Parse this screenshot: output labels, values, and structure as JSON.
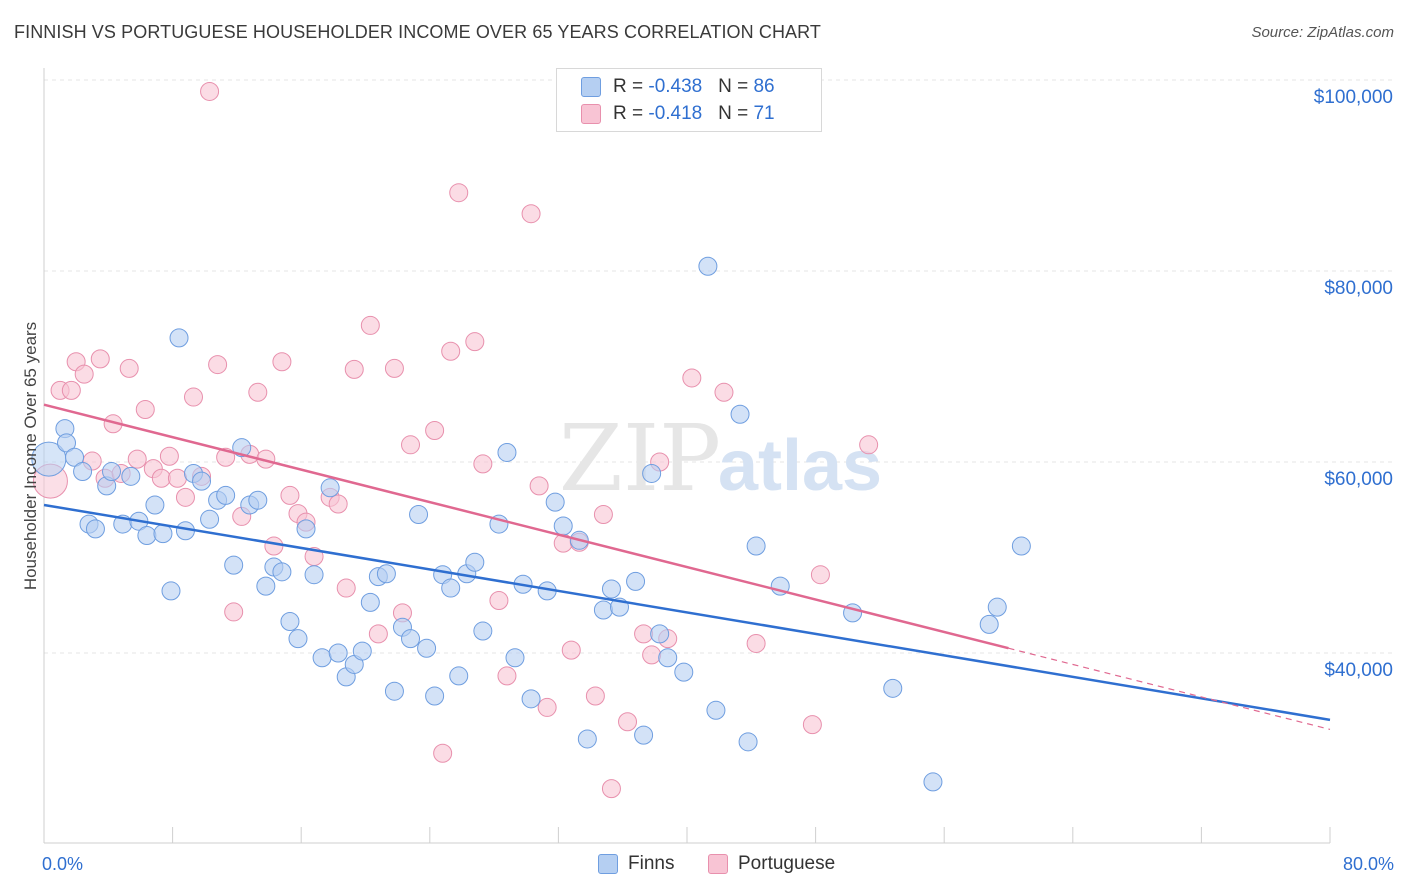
{
  "title": "FINNISH VS PORTUGUESE HOUSEHOLDER INCOME OVER 65 YEARS CORRELATION CHART",
  "source": "Source: ZipAtlas.com",
  "watermark": {
    "zip": "ZIP",
    "atlas": "atlas"
  },
  "legend": {
    "finns": {
      "r_label": "R = ",
      "r_value": "-0.438",
      "n_label": "N = ",
      "n_value": "86"
    },
    "portuguese": {
      "r_label": "R = ",
      "r_value": "-0.418",
      "n_label": "N = ",
      "n_value": "71"
    }
  },
  "chart_data": {
    "type": "scatter",
    "title": "FINNISH VS PORTUGUESE HOUSEHOLDER INCOME OVER 65 YEARS CORRELATION CHART",
    "xlabel": "",
    "ylabel": "Householder Income Over 65 years",
    "xlim": [
      0,
      80
    ],
    "ylim": [
      20000,
      102000
    ],
    "x_tick_labels": [
      "0.0%",
      "80.0%"
    ],
    "y_ticks": [
      40000,
      60000,
      80000,
      100000
    ],
    "y_tick_labels": [
      "$40,000",
      "$60,000",
      "$80,000",
      "$100,000"
    ],
    "grid": true,
    "legend_position": "top-center",
    "colors": {
      "finns_fill": "#b5cff2",
      "finns_stroke": "#6f9ee0",
      "finns_line": "#2f6fd0",
      "portuguese_fill": "#f8c4d4",
      "portuguese_stroke": "#e890ad",
      "portuguese_line": "#e06890"
    },
    "series": [
      {
        "name": "Finns",
        "trend": {
          "x": [
            0,
            80
          ],
          "y": [
            55500,
            33000
          ]
        },
        "points": [
          [
            0.3,
            60.3
          ],
          [
            1.3,
            63.5
          ],
          [
            1.4,
            62
          ],
          [
            1.9,
            60.5
          ],
          [
            2.4,
            59
          ],
          [
            2.8,
            53.5
          ],
          [
            3.2,
            53
          ],
          [
            3.9,
            57.5
          ],
          [
            4.2,
            59
          ],
          [
            4.9,
            53.5
          ],
          [
            5.4,
            58.5
          ],
          [
            5.9,
            53.8
          ],
          [
            6.4,
            52.3
          ],
          [
            6.9,
            55.5
          ],
          [
            7.4,
            52.5
          ],
          [
            7.9,
            46.5
          ],
          [
            8.4,
            73
          ],
          [
            8.8,
            52.8
          ],
          [
            9.3,
            58.8
          ],
          [
            9.8,
            58
          ],
          [
            10.3,
            54
          ],
          [
            10.8,
            56
          ],
          [
            11.3,
            56.5
          ],
          [
            11.8,
            49.2
          ],
          [
            12.3,
            61.5
          ],
          [
            12.8,
            55.5
          ],
          [
            13.3,
            56
          ],
          [
            13.8,
            47
          ],
          [
            14.3,
            49
          ],
          [
            14.8,
            48.5
          ],
          [
            15.3,
            43.3
          ],
          [
            15.8,
            41.5
          ],
          [
            16.3,
            53
          ],
          [
            16.8,
            48.2
          ],
          [
            17.3,
            39.5
          ],
          [
            17.8,
            57.3
          ],
          [
            18.3,
            40
          ],
          [
            18.8,
            37.5
          ],
          [
            19.3,
            38.8
          ],
          [
            19.8,
            40.2
          ],
          [
            20.3,
            45.3
          ],
          [
            20.8,
            48
          ],
          [
            21.3,
            48.3
          ],
          [
            21.8,
            36
          ],
          [
            22.3,
            42.7
          ],
          [
            22.8,
            41.5
          ],
          [
            23.3,
            54.5
          ],
          [
            23.8,
            40.5
          ],
          [
            24.3,
            35.5
          ],
          [
            24.8,
            48.2
          ],
          [
            25.3,
            46.8
          ],
          [
            25.8,
            37.6
          ],
          [
            26.3,
            48.3
          ],
          [
            26.8,
            49.5
          ],
          [
            27.3,
            42.3
          ],
          [
            28.3,
            53.5
          ],
          [
            28.8,
            61
          ],
          [
            29.3,
            39.5
          ],
          [
            29.8,
            47.2
          ],
          [
            30.3,
            35.2
          ],
          [
            31.3,
            46.5
          ],
          [
            31.8,
            55.8
          ],
          [
            32.3,
            53.3
          ],
          [
            33.3,
            51.8
          ],
          [
            33.8,
            31
          ],
          [
            34.8,
            44.5
          ],
          [
            35.3,
            46.7
          ],
          [
            35.8,
            44.8
          ],
          [
            36.8,
            47.5
          ],
          [
            37.3,
            31.4
          ],
          [
            37.8,
            58.8
          ],
          [
            38.3,
            42
          ],
          [
            38.8,
            39.5
          ],
          [
            39.8,
            38
          ],
          [
            41.3,
            80.5
          ],
          [
            41.8,
            34
          ],
          [
            43.3,
            65
          ],
          [
            43.8,
            30.7
          ],
          [
            44.3,
            51.2
          ],
          [
            45.8,
            47
          ],
          [
            50.3,
            44.2
          ],
          [
            52.8,
            36.3
          ],
          [
            55.3,
            26.5
          ],
          [
            58.8,
            43
          ],
          [
            59.3,
            44.8
          ],
          [
            60.8,
            51.2
          ]
        ]
      },
      {
        "name": "Portuguese",
        "trend": {
          "x": [
            0,
            60
          ],
          "y": [
            66000,
            40500
          ]
        },
        "trend_extension": {
          "x": [
            60,
            80
          ],
          "y": [
            40500,
            32000
          ]
        },
        "points": [
          [
            0.4,
            58
          ],
          [
            1.0,
            67.5
          ],
          [
            1.7,
            67.5
          ],
          [
            2.0,
            70.5
          ],
          [
            2.5,
            69.2
          ],
          [
            3.0,
            60.1
          ],
          [
            3.5,
            70.8
          ],
          [
            3.8,
            58.3
          ],
          [
            4.3,
            64
          ],
          [
            4.8,
            58.8
          ],
          [
            5.3,
            69.8
          ],
          [
            5.8,
            60.3
          ],
          [
            6.3,
            65.5
          ],
          [
            6.8,
            59.3
          ],
          [
            7.3,
            58.3
          ],
          [
            7.8,
            60.6
          ],
          [
            8.3,
            58.3
          ],
          [
            8.8,
            56.3
          ],
          [
            9.3,
            66.8
          ],
          [
            9.8,
            58.5
          ],
          [
            10.3,
            98.8
          ],
          [
            10.8,
            70.2
          ],
          [
            11.3,
            60.5
          ],
          [
            11.8,
            44.3
          ],
          [
            12.3,
            54.3
          ],
          [
            12.8,
            60.8
          ],
          [
            13.3,
            67.3
          ],
          [
            13.8,
            60.3
          ],
          [
            14.3,
            51.2
          ],
          [
            14.8,
            70.5
          ],
          [
            15.3,
            56.5
          ],
          [
            15.8,
            54.6
          ],
          [
            16.3,
            53.7
          ],
          [
            16.8,
            50.1
          ],
          [
            17.8,
            56.3
          ],
          [
            18.3,
            55.6
          ],
          [
            18.8,
            46.8
          ],
          [
            19.3,
            69.7
          ],
          [
            20.3,
            74.3
          ],
          [
            20.8,
            42
          ],
          [
            21.8,
            69.8
          ],
          [
            22.3,
            44.2
          ],
          [
            22.8,
            61.8
          ],
          [
            24.3,
            63.3
          ],
          [
            24.8,
            29.5
          ],
          [
            25.3,
            71.6
          ],
          [
            25.8,
            88.2
          ],
          [
            26.8,
            72.6
          ],
          [
            27.3,
            59.8
          ],
          [
            28.3,
            45.5
          ],
          [
            28.8,
            37.6
          ],
          [
            30.3,
            86
          ],
          [
            30.8,
            57.5
          ],
          [
            31.3,
            34.3
          ],
          [
            32.3,
            51.5
          ],
          [
            32.8,
            40.3
          ],
          [
            33.3,
            51.6
          ],
          [
            34.3,
            35.5
          ],
          [
            34.8,
            54.5
          ],
          [
            35.3,
            25.8
          ],
          [
            36.3,
            32.8
          ],
          [
            37.3,
            42
          ],
          [
            37.8,
            39.8
          ],
          [
            38.3,
            60
          ],
          [
            38.8,
            41.5
          ],
          [
            40.3,
            68.8
          ],
          [
            42.3,
            67.3
          ],
          [
            44.3,
            41
          ],
          [
            47.8,
            32.5
          ],
          [
            48.3,
            48.2
          ],
          [
            51.3,
            61.8
          ]
        ]
      }
    ]
  }
}
